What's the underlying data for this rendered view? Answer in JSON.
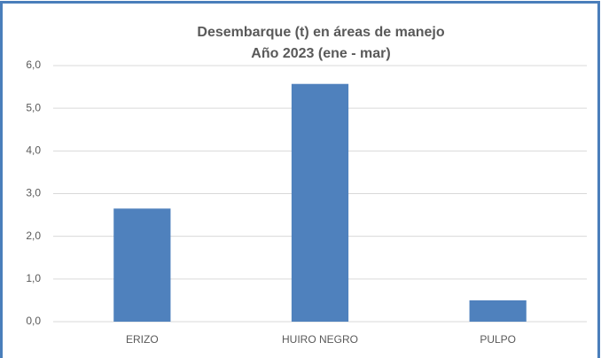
{
  "chart_data": {
    "type": "bar",
    "title": "Desembarque (t) en áreas de manejo",
    "subtitle": "Año 2023 (ene - mar)",
    "categories": [
      "ERIZO",
      "HUIRO NEGRO",
      "PULPO"
    ],
    "values": [
      2.65,
      5.57,
      0.5
    ],
    "color": "#4f81bd",
    "ylim": [
      0,
      6
    ],
    "yticks": [
      {
        "value": 0,
        "label": "0,0"
      },
      {
        "value": 1,
        "label": "1,0"
      },
      {
        "value": 2,
        "label": "2,0"
      },
      {
        "value": 3,
        "label": "3,0"
      },
      {
        "value": 4,
        "label": "4,0"
      },
      {
        "value": 5,
        "label": "5,0"
      },
      {
        "value": 6,
        "label": "6,0"
      }
    ],
    "grid": true
  }
}
